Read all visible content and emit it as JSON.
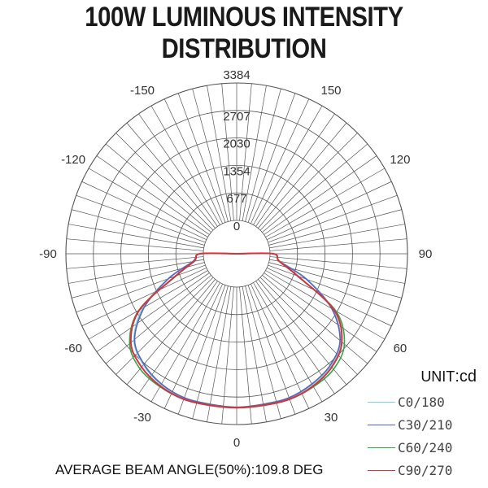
{
  "title": "100W LUMINOUS INTENSITY DISTRIBUTION",
  "unit_label": "UNIT",
  "unit_value": ":cd",
  "beam_angle_text": "AVERAGE BEAM ANGLE(50%):109.8 DEG",
  "colors": {
    "grid": "#555555",
    "C0/180": "#7fd1d9",
    "C30/210": "#5566c0",
    "C60/240": "#2ea84a",
    "C90/270": "#d6333d"
  },
  "chart_data": {
    "type": "polar",
    "title": "100W LUMINOUS INTENSITY DISTRIBUTION",
    "unit": "cd",
    "radial_ticks": [
      0,
      677,
      1354,
      2030,
      2707,
      3384
    ],
    "radial_max": 3384,
    "angle_labels": [
      {
        "angle": 0,
        "text": "0"
      },
      {
        "angle": 30,
        "text": "30"
      },
      {
        "angle": -30,
        "text": "-30"
      },
      {
        "angle": 60,
        "text": "60"
      },
      {
        "angle": -60,
        "text": "-60"
      },
      {
        "angle": 90,
        "text": "90"
      },
      {
        "angle": -90,
        "text": "-90"
      },
      {
        "angle": 120,
        "text": "120"
      },
      {
        "angle": -120,
        "text": "-120"
      },
      {
        "angle": 150,
        "text": "150"
      },
      {
        "angle": -150,
        "text": "-150"
      },
      {
        "angle": 180,
        "text": "3384"
      }
    ],
    "angles": [
      -90,
      -80,
      -70,
      -60,
      -50,
      -40,
      -30,
      -20,
      -10,
      0,
      10,
      20,
      30,
      40,
      50,
      60,
      70,
      80,
      90
    ],
    "series": [
      {
        "name": "C0/180",
        "values": [
          80,
          280,
          980,
          1850,
          2480,
          2750,
          2900,
          2960,
          2940,
          2950,
          2940,
          2960,
          2900,
          2780,
          2520,
          1900,
          1020,
          260,
          80
        ]
      },
      {
        "name": "C30/210",
        "values": [
          80,
          270,
          960,
          1800,
          2460,
          2730,
          2880,
          2950,
          2940,
          2960,
          2940,
          2950,
          2880,
          2760,
          2500,
          1880,
          1000,
          250,
          80
        ]
      },
      {
        "name": "C60/240",
        "values": [
          80,
          240,
          760,
          1960,
          2620,
          2880,
          2960,
          2990,
          2960,
          2970,
          2960,
          2990,
          2960,
          2890,
          2640,
          2000,
          760,
          240,
          80
        ]
      },
      {
        "name": "C90/270",
        "values": [
          80,
          240,
          780,
          1940,
          2580,
          2820,
          2940,
          2990,
          2970,
          2970,
          2970,
          2990,
          2940,
          2820,
          2560,
          1950,
          780,
          240,
          80
        ]
      }
    ]
  }
}
